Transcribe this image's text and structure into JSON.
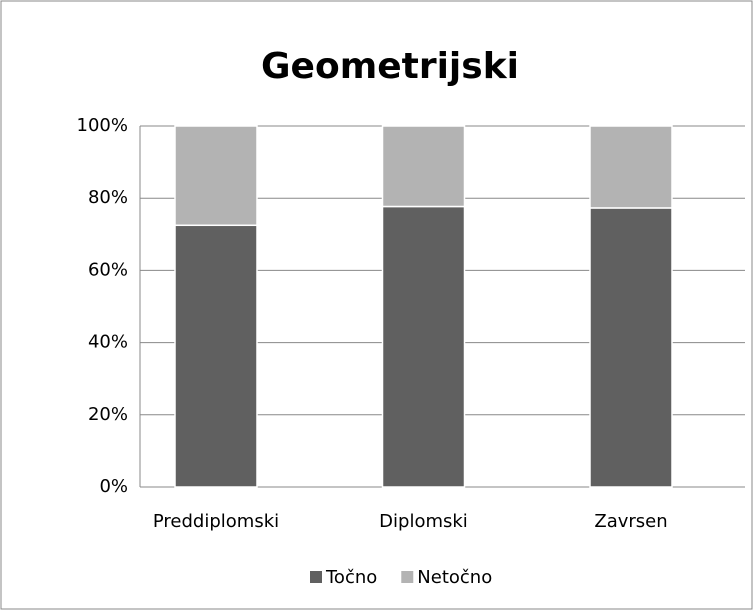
{
  "chart_data": {
    "type": "stacked_bar",
    "title": "Geometrijski",
    "categories": [
      "Preddiplomski",
      "Diplomski",
      "Zavrsen"
    ],
    "series": [
      {
        "name": "Točno",
        "color": "#606060",
        "values": [
          72.5,
          77.7,
          77.3
        ]
      },
      {
        "name": "Netočno",
        "color": "#b3b3b3",
        "values": [
          27.5,
          22.3,
          22.7
        ]
      }
    ],
    "ylim": [
      0,
      100
    ],
    "yticks": [
      {
        "value": 0,
        "label": "0%"
      },
      {
        "value": 20,
        "label": "20%"
      },
      {
        "value": 40,
        "label": "40%"
      },
      {
        "value": 60,
        "label": "60%"
      },
      {
        "value": 80,
        "label": "80%"
      },
      {
        "value": 100,
        "label": "100%"
      }
    ],
    "grid": true,
    "legend": "bottom"
  }
}
